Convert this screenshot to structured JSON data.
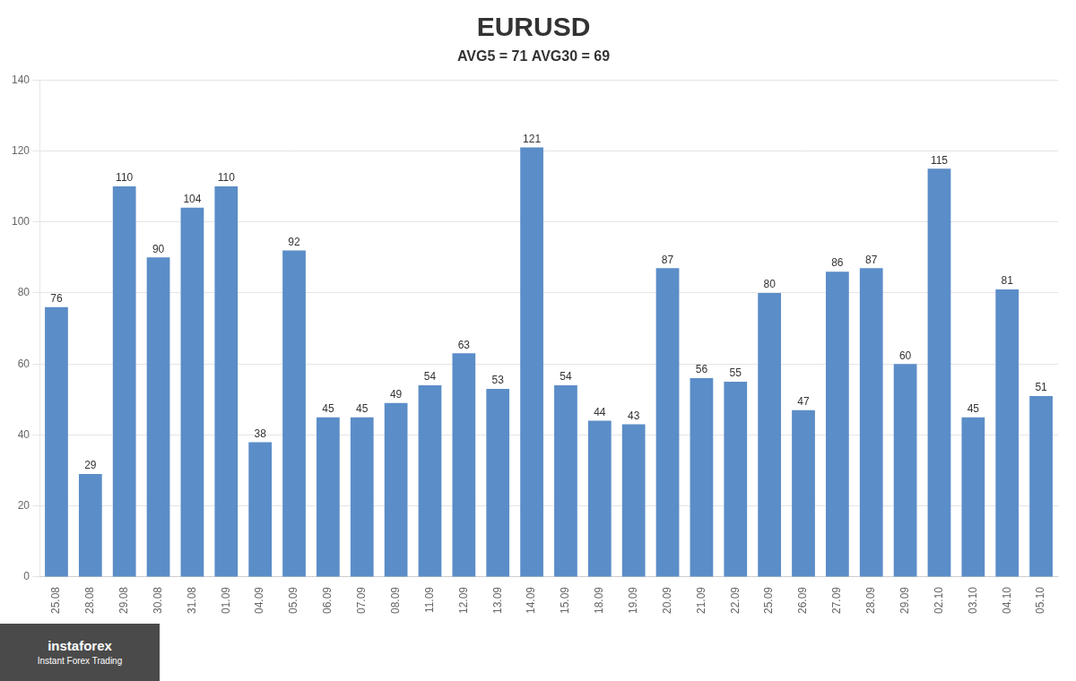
{
  "chart_data": {
    "type": "bar",
    "title": "EURUSD",
    "subtitle": "AVG5 = 71 AVG30 = 69",
    "categories": [
      "25.08",
      "28.08",
      "29.08",
      "30.08",
      "31.08",
      "01.09",
      "04.09",
      "05.09",
      "06.09",
      "07.09",
      "08.09",
      "11.09",
      "12.09",
      "13.09",
      "14.09",
      "15.09",
      "18.09",
      "19.09",
      "20.09",
      "21.09",
      "22.09",
      "25.09",
      "26.09",
      "27.09",
      "28.09",
      "29.09",
      "02.10",
      "03.10",
      "04.10",
      "05.10"
    ],
    "values": [
      76,
      29,
      110,
      90,
      104,
      110,
      38,
      92,
      45,
      45,
      49,
      54,
      63,
      53,
      121,
      54,
      44,
      43,
      87,
      56,
      55,
      80,
      47,
      86,
      87,
      60,
      115,
      45,
      81,
      51
    ],
    "color": "#5B8DC8",
    "ylim": [
      0,
      140
    ],
    "yticks": [
      0,
      20,
      40,
      60,
      80,
      100,
      120,
      140
    ],
    "grid": true,
    "data_labels": true,
    "annotations": [
      "instaforex",
      "Instant Forex Trading"
    ]
  }
}
